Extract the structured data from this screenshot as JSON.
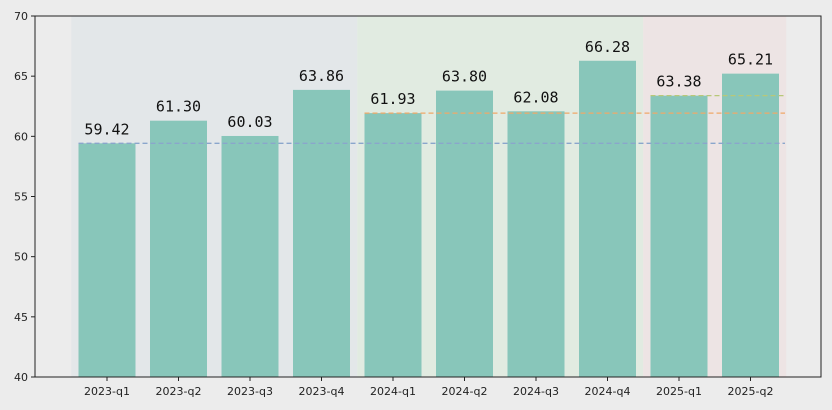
{
  "chart_data": {
    "type": "bar",
    "title": "",
    "xlabel": "",
    "ylabel": "",
    "categories": [
      "2023-q1",
      "2023-q2",
      "2023-q3",
      "2023-q4",
      "2024-q1",
      "2024-q2",
      "2024-q3",
      "2024-q4",
      "2025-q1",
      "2025-q2"
    ],
    "values": [
      59.42,
      61.3,
      60.03,
      63.86,
      61.93,
      63.8,
      62.08,
      66.28,
      63.38,
      65.21
    ],
    "data_labels": [
      "59.42",
      "61.30",
      "60.03",
      "63.86",
      "61.93",
      "63.80",
      "62.08",
      "66.28",
      "63.38",
      "65.21"
    ],
    "ylim": [
      40,
      70
    ],
    "yticks": [
      40,
      45,
      50,
      55,
      60,
      65,
      70
    ],
    "grid": false,
    "legend": "none",
    "bar_color": "#88c6ba",
    "year_groups": [
      {
        "year": "2023",
        "start": 0,
        "end": 3,
        "band_color": "#e3e7e9",
        "ref_line_value": 59.42,
        "ref_line_color": "#8aa6cc"
      },
      {
        "year": "2024",
        "start": 4,
        "end": 7,
        "band_color": "#e1ebe1",
        "ref_line_value": 61.93,
        "ref_line_color": "#f0a868"
      },
      {
        "year": "2025",
        "start": 8,
        "end": 9,
        "band_color": "#ede4e4",
        "ref_line_value": 63.38,
        "ref_line_color": "#b8c878"
      }
    ]
  }
}
